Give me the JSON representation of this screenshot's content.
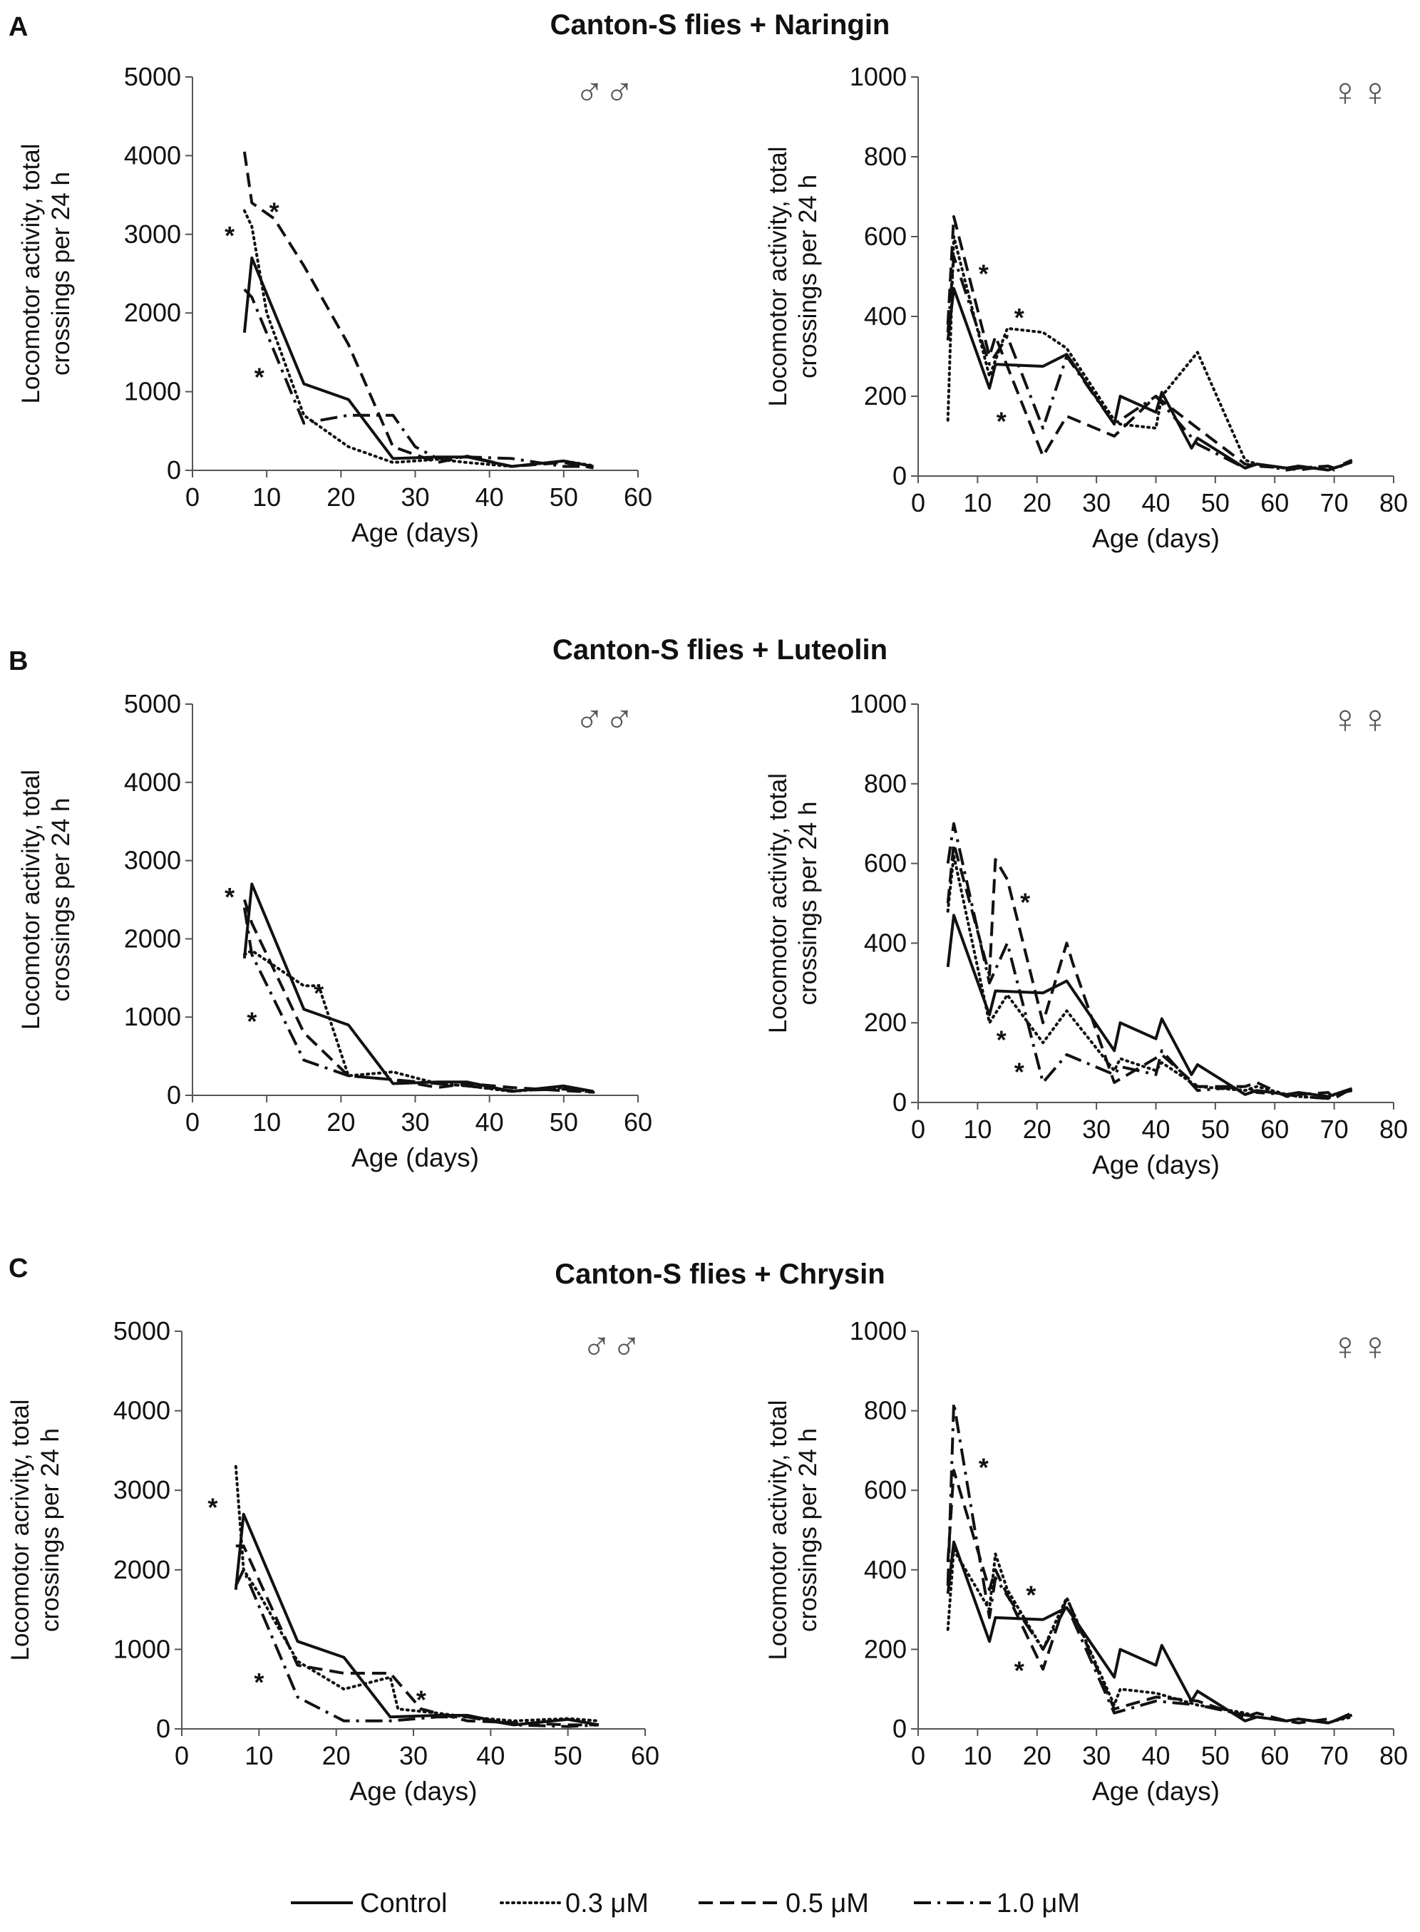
{
  "figure": {
    "legend": [
      {
        "name": "Control",
        "dash": "solid"
      },
      {
        "name": "0.3 μM",
        "dash": "dotted"
      },
      {
        "name": "0.5 μM",
        "dash": "dashed"
      },
      {
        "name": "1.0 μM",
        "dash": "dashdot"
      }
    ]
  },
  "chart_data": [
    {
      "type": "line",
      "panel": "A",
      "title": "Canton-S flies + Naringin",
      "sex": "♂♂",
      "xlabel": "Age (days)",
      "ylabel": [
        "Locomotor activity, total",
        "crossings per 24 h"
      ],
      "xlim": [
        0,
        60
      ],
      "ylim": [
        0,
        5000
      ],
      "xticks": [
        "0",
        "10",
        "20",
        "30",
        "40",
        "50",
        "60"
      ],
      "yticks": [
        "0",
        "1000",
        "2000",
        "3000",
        "4000",
        "5000"
      ],
      "series": [
        {
          "name": "Control",
          "x": [
            7,
            8,
            15,
            21,
            27,
            33,
            37,
            43,
            50,
            54
          ],
          "y": [
            1750,
            2700,
            1100,
            900,
            150,
            170,
            170,
            50,
            120,
            50
          ]
        },
        {
          "name": "0.3 μM",
          "x": [
            7,
            8,
            10,
            15,
            21,
            27,
            33,
            37,
            43,
            50,
            54
          ],
          "y": [
            3300,
            3100,
            2000,
            700,
            300,
            100,
            140,
            100,
            50,
            120,
            60
          ]
        },
        {
          "name": "0.5 μM",
          "x": [
            7,
            8,
            11,
            15,
            21,
            27,
            33,
            37,
            43,
            50,
            54
          ],
          "y": [
            4050,
            3400,
            3200,
            2600,
            1600,
            300,
            100,
            180,
            50,
            100,
            30
          ]
        },
        {
          "name": "1.0 μM",
          "x": [
            7,
            8,
            15,
            21,
            27,
            30,
            33,
            37,
            43,
            50,
            54
          ],
          "y": [
            2300,
            2200,
            600,
            700,
            700,
            300,
            150,
            170,
            150,
            50,
            50
          ]
        }
      ],
      "annotations": [
        {
          "text": "*",
          "x": 5,
          "y": 3000
        },
        {
          "text": "*",
          "x": 11,
          "y": 3300
        },
        {
          "text": "*",
          "x": 9,
          "y": 1200
        }
      ]
    },
    {
      "type": "line",
      "panel": "A",
      "sex": "♀♀",
      "xlabel": "Age (days)",
      "ylabel": [
        "Locomotor activity, total",
        "crossings per 24 h"
      ],
      "xlim": [
        0,
        80
      ],
      "ylim": [
        0,
        1000
      ],
      "xticks": [
        "0",
        "10",
        "20",
        "30",
        "40",
        "50",
        "60",
        "70",
        "80"
      ],
      "yticks": [
        "0",
        "200",
        "400",
        "600",
        "800",
        "1000"
      ],
      "series": [
        {
          "name": "Control",
          "x": [
            5,
            6,
            12,
            13,
            21,
            25,
            33,
            34,
            40,
            41,
            46,
            47,
            55,
            57,
            62,
            64,
            69,
            70,
            73
          ],
          "y": [
            340,
            470,
            220,
            280,
            275,
            305,
            130,
            200,
            160,
            210,
            70,
            95,
            20,
            30,
            20,
            25,
            15,
            20,
            35
          ]
        },
        {
          "name": "0.3 μM",
          "x": [
            5,
            6,
            12,
            15,
            21,
            25,
            33,
            34,
            40,
            41,
            47,
            55,
            57,
            62,
            64,
            69,
            70,
            73
          ],
          "y": [
            140,
            600,
            250,
            370,
            360,
            320,
            140,
            130,
            120,
            200,
            310,
            40,
            30,
            20,
            25,
            15,
            20,
            35
          ]
        },
        {
          "name": "0.5 μM",
          "x": [
            5,
            6,
            12,
            13,
            21,
            25,
            33,
            40,
            47,
            55,
            57,
            62,
            64,
            69,
            70,
            73
          ],
          "y": [
            380,
            650,
            300,
            350,
            50,
            150,
            100,
            200,
            120,
            30,
            25,
            20,
            15,
            25,
            20,
            40
          ]
        },
        {
          "name": "1.0 μM",
          "x": [
            5,
            6,
            12,
            15,
            21,
            25,
            33,
            40,
            47,
            55,
            57,
            62,
            64,
            69,
            70,
            73
          ],
          "y": [
            360,
            550,
            280,
            350,
            120,
            300,
            130,
            200,
            80,
            20,
            30,
            15,
            20,
            25,
            15,
            40
          ]
        }
      ],
      "annotations": [
        {
          "text": "*",
          "x": 11,
          "y": 510
        },
        {
          "text": "*",
          "x": 17,
          "y": 400
        },
        {
          "text": "*",
          "x": 14,
          "y": 140
        }
      ]
    },
    {
      "type": "line",
      "panel": "B",
      "title": "Canton-S flies + Luteolin",
      "sex": "♂♂",
      "xlabel": "Age (days)",
      "ylabel": [
        "Locomotor activity, total",
        "crossings per 24 h"
      ],
      "xlim": [
        0,
        60
      ],
      "ylim": [
        0,
        5000
      ],
      "xticks": [
        "0",
        "10",
        "20",
        "30",
        "40",
        "50",
        "60"
      ],
      "yticks": [
        "0",
        "1000",
        "2000",
        "3000",
        "4000",
        "5000"
      ],
      "series": [
        {
          "name": "Control",
          "x": [
            7,
            8,
            15,
            21,
            27,
            33,
            37,
            43,
            50,
            54
          ],
          "y": [
            1750,
            2700,
            1100,
            900,
            150,
            170,
            170,
            50,
            120,
            50
          ]
        },
        {
          "name": "0.3 μM",
          "x": [
            7,
            8,
            15,
            17,
            21,
            27,
            33,
            37,
            43,
            50,
            54
          ],
          "y": [
            1800,
            1850,
            1400,
            1400,
            250,
            300,
            150,
            120,
            50,
            100,
            40
          ]
        },
        {
          "name": "0.5 μM",
          "x": [
            7,
            8,
            15,
            21,
            27,
            33,
            37,
            43,
            50,
            54
          ],
          "y": [
            2500,
            2200,
            800,
            250,
            200,
            100,
            150,
            100,
            60,
            40
          ]
        },
        {
          "name": "1.0 μM",
          "x": [
            7,
            8,
            15,
            21,
            27,
            33,
            37,
            43,
            50,
            54
          ],
          "y": [
            2400,
            1800,
            450,
            250,
            200,
            150,
            120,
            60,
            80,
            40
          ]
        }
      ],
      "annotations": [
        {
          "text": "*",
          "x": 5,
          "y": 2550
        },
        {
          "text": "*",
          "x": 17,
          "y": 1320
        },
        {
          "text": "*",
          "x": 8,
          "y": 960
        }
      ]
    },
    {
      "type": "line",
      "panel": "B",
      "sex": "♀♀",
      "xlabel": "Age (days)",
      "ylabel": [
        "Locomotor activity, total",
        "crossings per 24 h"
      ],
      "xlim": [
        0,
        80
      ],
      "ylim": [
        0,
        1000
      ],
      "xticks": [
        "0",
        "10",
        "20",
        "30",
        "40",
        "50",
        "60",
        "70",
        "80"
      ],
      "yticks": [
        "0",
        "200",
        "400",
        "600",
        "800",
        "1000"
      ],
      "series": [
        {
          "name": "Control",
          "x": [
            5,
            6,
            12,
            13,
            21,
            25,
            33,
            34,
            40,
            41,
            46,
            47,
            55,
            57,
            62,
            64,
            69,
            70,
            73
          ],
          "y": [
            340,
            470,
            220,
            280,
            275,
            305,
            130,
            200,
            160,
            210,
            70,
            95,
            20,
            30,
            20,
            25,
            15,
            20,
            35
          ]
        },
        {
          "name": "0.3 μM",
          "x": [
            5,
            6,
            12,
            15,
            21,
            25,
            33,
            34,
            40,
            41,
            47,
            55,
            57,
            62,
            64,
            69,
            70,
            73
          ],
          "y": [
            480,
            620,
            200,
            270,
            150,
            230,
            80,
            110,
            80,
            100,
            40,
            30,
            40,
            20,
            15,
            10,
            20,
            30
          ]
        },
        {
          "name": "0.5 μM",
          "x": [
            5,
            6,
            12,
            13,
            15,
            21,
            25,
            26,
            33,
            41,
            47,
            55,
            57,
            62,
            64,
            69,
            70,
            73
          ],
          "y": [
            500,
            650,
            320,
            610,
            560,
            200,
            400,
            350,
            50,
            120,
            40,
            40,
            50,
            15,
            20,
            25,
            10,
            35
          ]
        },
        {
          "name": "1.0 μM",
          "x": [
            5,
            6,
            12,
            15,
            21,
            25,
            33,
            34,
            40,
            41,
            47,
            55,
            57,
            62,
            64,
            69,
            70,
            73
          ],
          "y": [
            600,
            700,
            300,
            400,
            50,
            120,
            70,
            90,
            70,
            130,
            30,
            40,
            25,
            20,
            15,
            10,
            20,
            30
          ]
        }
      ],
      "annotations": [
        {
          "text": "*",
          "x": 18,
          "y": 505
        },
        {
          "text": "*",
          "x": 14,
          "y": 160
        },
        {
          "text": "*",
          "x": 17,
          "y": 80
        }
      ]
    },
    {
      "type": "line",
      "panel": "C",
      "title": "Canton-S flies + Chrysin",
      "sex": "♂♂",
      "xlabel": "Age (days)",
      "ylabel": [
        "Locomotor acrivity, total",
        "crossings per 24 h"
      ],
      "xlim": [
        0,
        60
      ],
      "ylim": [
        0,
        5000
      ],
      "xticks": [
        "0",
        "10",
        "20",
        "30",
        "40",
        "50",
        "60"
      ],
      "yticks": [
        "0",
        "1000",
        "2000",
        "3000",
        "4000",
        "5000"
      ],
      "series": [
        {
          "name": "Control",
          "x": [
            7,
            8,
            15,
            21,
            27,
            33,
            37,
            43,
            50,
            54
          ],
          "y": [
            1750,
            2700,
            1100,
            900,
            150,
            170,
            170,
            50,
            120,
            50
          ]
        },
        {
          "name": "0.3 μM",
          "x": [
            7,
            8,
            10,
            15,
            21,
            27,
            28,
            33,
            37,
            43,
            50,
            54
          ],
          "y": [
            3300,
            2000,
            1700,
            850,
            500,
            650,
            250,
            200,
            150,
            100,
            130,
            100
          ]
        },
        {
          "name": "0.5 μM",
          "x": [
            7,
            8,
            15,
            21,
            27,
            31,
            37,
            43,
            50,
            54
          ],
          "y": [
            2300,
            2300,
            800,
            700,
            700,
            250,
            100,
            80,
            50,
            50
          ]
        },
        {
          "name": "1.0 μM",
          "x": [
            7,
            8,
            15,
            21,
            27,
            33,
            37,
            43,
            50,
            54
          ],
          "y": [
            1800,
            2000,
            400,
            100,
            100,
            150,
            150,
            50,
            30,
            50
          ]
        }
      ],
      "annotations": [
        {
          "text": "*",
          "x": 4,
          "y": 2800
        },
        {
          "text": "*",
          "x": 10,
          "y": 600
        },
        {
          "text": "*",
          "x": 31,
          "y": 380
        }
      ]
    },
    {
      "type": "line",
      "panel": "C",
      "sex": "♀♀",
      "xlabel": "Age (days)",
      "ylabel": [
        "Locomotor activity, total",
        "crossings per 24 h"
      ],
      "xlim": [
        0,
        80
      ],
      "ylim": [
        0,
        1000
      ],
      "xticks": [
        "0",
        "10",
        "20",
        "30",
        "40",
        "50",
        "60",
        "70",
        "80"
      ],
      "yticks": [
        "0",
        "200",
        "400",
        "600",
        "800",
        "1000"
      ],
      "series": [
        {
          "name": "Control",
          "x": [
            5,
            6,
            12,
            13,
            21,
            25,
            33,
            34,
            40,
            41,
            46,
            47,
            55,
            57,
            62,
            64,
            69,
            70,
            73
          ],
          "y": [
            340,
            470,
            220,
            280,
            275,
            305,
            130,
            200,
            160,
            210,
            70,
            95,
            20,
            30,
            20,
            25,
            15,
            20,
            35
          ]
        },
        {
          "name": "0.3 μM",
          "x": [
            5,
            6,
            12,
            13,
            15,
            21,
            25,
            33,
            34,
            40,
            47,
            55,
            57,
            62,
            64,
            69,
            70,
            73
          ],
          "y": [
            250,
            450,
            300,
            440,
            350,
            200,
            330,
            60,
            100,
            90,
            60,
            40,
            30,
            20,
            25,
            15,
            20,
            30
          ]
        },
        {
          "name": "0.5 μM",
          "x": [
            5,
            6,
            12,
            13,
            21,
            25,
            33,
            40,
            47,
            55,
            57,
            62,
            64,
            69,
            70,
            73
          ],
          "y": [
            420,
            650,
            350,
            400,
            150,
            330,
            50,
            80,
            70,
            30,
            40,
            20,
            15,
            25,
            20,
            40
          ]
        },
        {
          "name": "1.0 μM",
          "x": [
            5,
            6,
            12,
            13,
            21,
            25,
            33,
            40,
            47,
            55,
            57,
            62,
            64,
            69,
            70,
            73
          ],
          "y": [
            360,
            820,
            280,
            380,
            200,
            310,
            40,
            70,
            60,
            35,
            30,
            20,
            25,
            15,
            20,
            40
          ]
        }
      ],
      "annotations": [
        {
          "text": "*",
          "x": 11,
          "y": 660
        },
        {
          "text": "*",
          "x": 19,
          "y": 340
        },
        {
          "text": "*",
          "x": 17,
          "y": 150
        }
      ]
    }
  ]
}
